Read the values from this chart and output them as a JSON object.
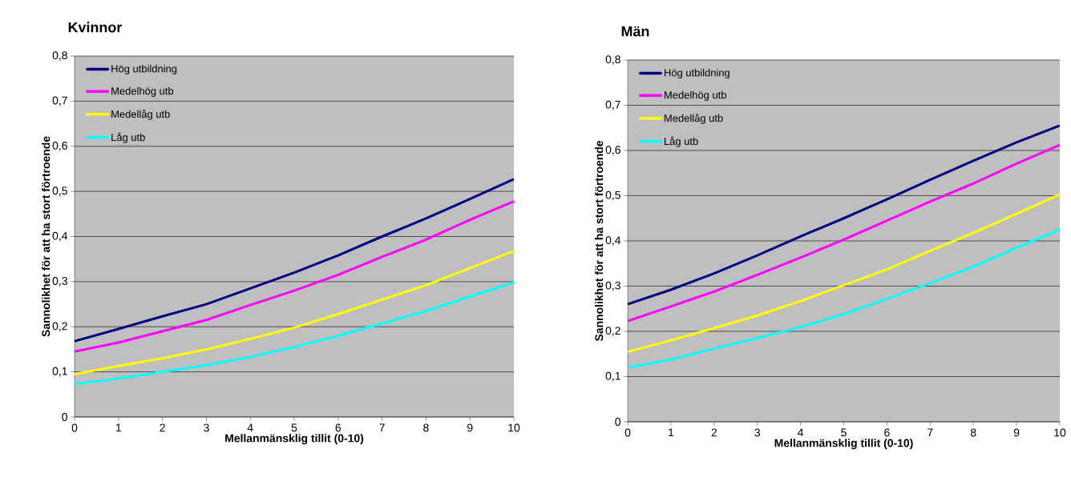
{
  "chart_data": [
    {
      "type": "line",
      "title": "Kvinnor",
      "xlabel": "Mellanmänsklig tillit (0-10)",
      "ylabel": "Sannolikhet för att ha stort förtroende",
      "x": [
        0,
        1,
        2,
        3,
        4,
        5,
        6,
        7,
        8,
        9,
        10
      ],
      "xlim": [
        0,
        10
      ],
      "ylim": [
        0,
        0.8
      ],
      "xticks": [
        0,
        1,
        2,
        3,
        4,
        5,
        6,
        7,
        8,
        9,
        10
      ],
      "yticks": [
        0,
        {
          "value": 0.1,
          "label": "0,1"
        },
        {
          "value": 0.2,
          "label": "0,2"
        },
        {
          "value": 0.3,
          "label": "0,3"
        },
        {
          "value": 0.4,
          "label": "0,4"
        },
        {
          "value": 0.5,
          "label": "0,5"
        },
        {
          "value": 0.6,
          "label": "0,6"
        },
        {
          "value": 0.7,
          "label": "0,7"
        },
        {
          "value": 0.8,
          "label": "0,8"
        }
      ],
      "grid": "y",
      "legend": "top left",
      "series": [
        {
          "name": "Hög utbildning",
          "color": "#000080",
          "values": [
            0.168,
            0.195,
            0.223,
            0.25,
            0.285,
            0.32,
            0.358,
            0.4,
            0.44,
            0.483,
            0.527
          ]
        },
        {
          "name": "Medelhög utb",
          "color": "#ff00ff",
          "values": [
            0.145,
            0.165,
            0.19,
            0.215,
            0.248,
            0.28,
            0.315,
            0.355,
            0.393,
            0.437,
            0.478
          ]
        },
        {
          "name": "Medellåg utb",
          "color": "#ffff00",
          "values": [
            0.095,
            0.113,
            0.13,
            0.15,
            0.173,
            0.198,
            0.228,
            0.26,
            0.292,
            0.33,
            0.368
          ]
        },
        {
          "name": "Låg utb",
          "color": "#00ffff",
          "values": [
            0.073,
            0.085,
            0.1,
            0.115,
            0.133,
            0.155,
            0.18,
            0.207,
            0.235,
            0.267,
            0.298
          ]
        }
      ]
    },
    {
      "type": "line",
      "title": "Män",
      "xlabel": "Mellanmänsklig tillit (0-10)",
      "ylabel": "Sannolikhet för att ha stort förtroende",
      "x": [
        0,
        1,
        2,
        3,
        4,
        5,
        6,
        7,
        8,
        9,
        10
      ],
      "xlim": [
        0,
        10
      ],
      "ylim": [
        0,
        0.8
      ],
      "xticks": [
        0,
        1,
        2,
        3,
        4,
        5,
        6,
        7,
        8,
        9,
        10
      ],
      "yticks": [
        0,
        {
          "value": 0.1,
          "label": "0,1"
        },
        {
          "value": 0.2,
          "label": "0,2"
        },
        {
          "value": 0.3,
          "label": "0,3"
        },
        {
          "value": 0.4,
          "label": "0,4"
        },
        {
          "value": 0.5,
          "label": "0,5"
        },
        {
          "value": 0.6,
          "label": "0,6"
        },
        {
          "value": 0.7,
          "label": "0,7"
        },
        {
          "value": 0.8,
          "label": "0,8"
        }
      ],
      "grid": "y",
      "legend": "top left",
      "series": [
        {
          "name": "Hög utbildning",
          "color": "#000080",
          "values": [
            0.26,
            0.292,
            0.328,
            0.368,
            0.41,
            0.45,
            0.492,
            0.535,
            0.577,
            0.618,
            0.655
          ]
        },
        {
          "name": "Medelhög utb",
          "color": "#ff00ff",
          "values": [
            0.223,
            0.255,
            0.288,
            0.325,
            0.363,
            0.403,
            0.445,
            0.487,
            0.527,
            0.571,
            0.612
          ]
        },
        {
          "name": "Medellåg utb",
          "color": "#ffff00",
          "values": [
            0.155,
            0.18,
            0.207,
            0.235,
            0.267,
            0.302,
            0.337,
            0.378,
            0.418,
            0.46,
            0.503
          ]
        },
        {
          "name": "Låg utb",
          "color": "#00ffff",
          "values": [
            0.12,
            0.138,
            0.162,
            0.185,
            0.21,
            0.238,
            0.272,
            0.307,
            0.343,
            0.385,
            0.425
          ]
        }
      ]
    }
  ]
}
